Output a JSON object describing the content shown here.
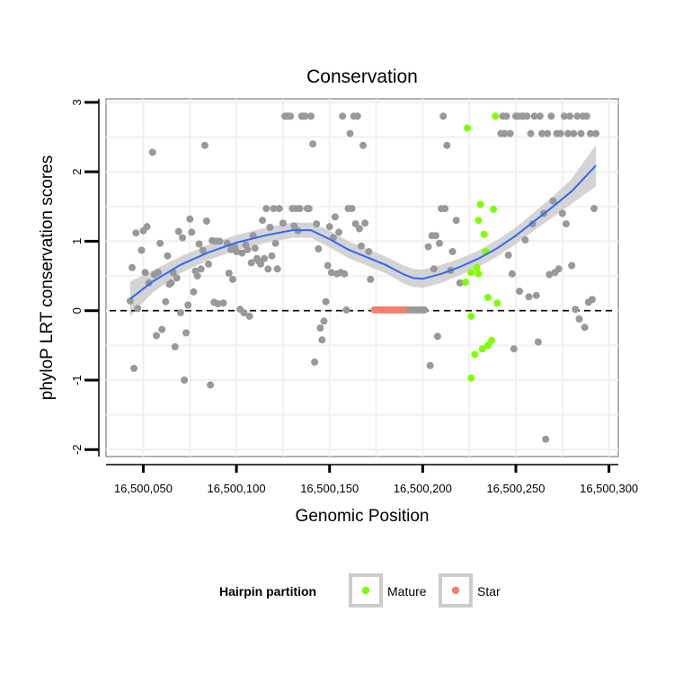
{
  "chart_data": {
    "type": "scatter",
    "title": "Conservation",
    "xlabel": "Genomic Position",
    "ylabel": "phyloP LRT conservation scores",
    "xlim": [
      16500030,
      16500305
    ],
    "ylim": [
      -2.1,
      3.05
    ],
    "x_ticks": [
      16500050,
      16500100,
      16500150,
      16500200,
      16500250,
      16500300
    ],
    "x_tick_labels": [
      "16,500,050",
      "16,500,100",
      "16,500,150",
      "16,500,200",
      "16,500,250",
      "16,500,300"
    ],
    "y_ticks": [
      -2,
      -1,
      0,
      1,
      2,
      3
    ],
    "y_tick_labels": [
      "-2",
      "-1",
      "0",
      "1",
      "2",
      "3"
    ],
    "grid": true,
    "reference_line": {
      "y": 0,
      "style": "dashed",
      "color": "#000000"
    },
    "legend": {
      "title": "Hairpin partition",
      "position": "bottom",
      "entries": [
        {
          "label": "Mature",
          "color": "#7fff00"
        },
        {
          "label": "Star",
          "color": "#f08070"
        }
      ]
    },
    "series": [
      {
        "name": "Mature",
        "color": "#7fff00",
        "points": [
          [
            16500224,
            2.63
          ],
          [
            16500239,
            2.8
          ],
          [
            16500231,
            1.53
          ],
          [
            16500238,
            1.46
          ],
          [
            16500230,
            1.3
          ],
          [
            16500233,
            1.1
          ],
          [
            16500234,
            0.85
          ],
          [
            16500229,
            0.62
          ],
          [
            16500226,
            0.55
          ],
          [
            16500223,
            0.41
          ],
          [
            16500230,
            0.53
          ],
          [
            16500235,
            0.19
          ],
          [
            16500240,
            0.11
          ],
          [
            16500226,
            -0.08
          ],
          [
            16500237,
            -0.43
          ],
          [
            16500235,
            -0.5
          ],
          [
            16500232,
            -0.55
          ],
          [
            16500228,
            -0.63
          ],
          [
            16500226,
            -0.97
          ]
        ]
      },
      {
        "name": "Star",
        "color": "#f08070",
        "points": [
          [
            16500174,
            0.01
          ],
          [
            16500175,
            0.01
          ],
          [
            16500176,
            0.01
          ],
          [
            16500177,
            0.01
          ],
          [
            16500178,
            0.01
          ],
          [
            16500179,
            0.01
          ],
          [
            16500180,
            0.01
          ],
          [
            16500181,
            0.01
          ],
          [
            16500182,
            0.01
          ],
          [
            16500183,
            0.01
          ],
          [
            16500184,
            0.01
          ],
          [
            16500185,
            0.01
          ],
          [
            16500186,
            0.01
          ],
          [
            16500187,
            0.01
          ],
          [
            16500188,
            0.01
          ],
          [
            16500189,
            0.01
          ],
          [
            16500190,
            0.01
          ]
        ]
      },
      {
        "name": "",
        "color": "#999999",
        "points": [
          [
            16500043,
            0.14
          ],
          [
            16500044,
            0.62
          ],
          [
            16500045,
            -0.83
          ],
          [
            16500046,
            1.12
          ],
          [
            16500047,
            0.03
          ],
          [
            16500049,
            0.87
          ],
          [
            16500050,
            1.15
          ],
          [
            16500051,
            0.55
          ],
          [
            16500052,
            1.21
          ],
          [
            16500053,
            0.4
          ],
          [
            16500055,
            2.28
          ],
          [
            16500056,
            0.52
          ],
          [
            16500057,
            -0.36
          ],
          [
            16500058,
            0.55
          ],
          [
            16500059,
            0.97
          ],
          [
            16500060,
            -0.27
          ],
          [
            16500062,
            0.13
          ],
          [
            16500063,
            0.79
          ],
          [
            16500064,
            0.38
          ],
          [
            16500065,
            0.4
          ],
          [
            16500066,
            0.55
          ],
          [
            16500067,
            -0.52
          ],
          [
            16500068,
            0.47
          ],
          [
            16500069,
            1.14
          ],
          [
            16500070,
            -0.03
          ],
          [
            16500071,
            1.05
          ],
          [
            16500072,
            -1.0
          ],
          [
            16500073,
            -0.32
          ],
          [
            16500074,
            0.08
          ],
          [
            16500075,
            1.32
          ],
          [
            16500076,
            1.13
          ],
          [
            16500077,
            0.27
          ],
          [
            16500078,
            0.57
          ],
          [
            16500079,
            0.5
          ],
          [
            16500080,
            0.96
          ],
          [
            16500081,
            0.6
          ],
          [
            16500082,
            0.87
          ],
          [
            16500083,
            2.38
          ],
          [
            16500084,
            1.29
          ],
          [
            16500085,
            0.67
          ],
          [
            16500086,
            -1.07
          ],
          [
            16500087,
            1.01
          ],
          [
            16500088,
            0.12
          ],
          [
            16500089,
            1.0
          ],
          [
            16500090,
            0.1
          ],
          [
            16500091,
            1.0
          ],
          [
            16500093,
            0.11
          ],
          [
            16500095,
            0.97
          ],
          [
            16500096,
            0.54
          ],
          [
            16500097,
            0.88
          ],
          [
            16500098,
            0.45
          ],
          [
            16500099,
            0.92
          ],
          [
            16500100,
            0.85
          ],
          [
            16500102,
            0.02
          ],
          [
            16500103,
            0.83
          ],
          [
            16500104,
            -0.03
          ],
          [
            16500105,
            0.95
          ],
          [
            16500106,
            0.88
          ],
          [
            16500107,
            -0.08
          ],
          [
            16500108,
            0.69
          ],
          [
            16500109,
            1.08
          ],
          [
            16500110,
            0.9
          ],
          [
            16500111,
            0.75
          ],
          [
            16500112,
            0.71
          ],
          [
            16500113,
            0.67
          ],
          [
            16500114,
            1.3
          ],
          [
            16500115,
            0.75
          ],
          [
            16500116,
            1.47
          ],
          [
            16500117,
            0.6
          ],
          [
            16500118,
            1.2
          ],
          [
            16500119,
            0.79
          ],
          [
            16500120,
            1.47
          ],
          [
            16500121,
            0.97
          ],
          [
            16500122,
            0.6
          ],
          [
            16500123,
            1.47
          ],
          [
            16500125,
            1.26
          ],
          [
            16500126,
            2.8
          ],
          [
            16500127,
            2.8
          ],
          [
            16500128,
            2.8
          ],
          [
            16500129,
            2.8
          ],
          [
            16500130,
            1.47
          ],
          [
            16500131,
            1.22
          ],
          [
            16500132,
            1.47
          ],
          [
            16500133,
            1.15
          ],
          [
            16500134,
            1.47
          ],
          [
            16500135,
            2.8
          ],
          [
            16500136,
            2.8
          ],
          [
            16500137,
            2.8
          ],
          [
            16500138,
            1.47
          ],
          [
            16500139,
            1.47
          ],
          [
            16500140,
            2.8
          ],
          [
            16500141,
            2.4
          ],
          [
            16500142,
            -0.74
          ],
          [
            16500143,
            1.25
          ],
          [
            16500144,
            0.89
          ],
          [
            16500145,
            -0.25
          ],
          [
            16500146,
            -0.42
          ],
          [
            16500147,
            -0.15
          ],
          [
            16500148,
            0.13
          ],
          [
            16500149,
            0.65
          ],
          [
            16500150,
            1.21
          ],
          [
            16500151,
            0.55
          ],
          [
            16500152,
            1.05
          ],
          [
            16500153,
            1.35
          ],
          [
            16500154,
            0.53
          ],
          [
            16500155,
            1.13
          ],
          [
            16500156,
            0.55
          ],
          [
            16500157,
            2.8
          ],
          [
            16500158,
            0.53
          ],
          [
            16500159,
            0.01
          ],
          [
            16500160,
            1.47
          ],
          [
            16500161,
            2.55
          ],
          [
            16500162,
            1.47
          ],
          [
            16500163,
            2.8
          ],
          [
            16500164,
            1.25
          ],
          [
            16500165,
            2.8
          ],
          [
            16500166,
            1.18
          ],
          [
            16500167,
            0.93
          ],
          [
            16500168,
            2.38
          ],
          [
            16500169,
            1.26
          ],
          [
            16500171,
            0.85
          ],
          [
            16500172,
            0.45
          ],
          [
            16500191,
            0.01
          ],
          [
            16500192,
            0.01
          ],
          [
            16500193,
            0.01
          ],
          [
            16500194,
            0.01
          ],
          [
            16500195,
            0.01
          ],
          [
            16500196,
            0.01
          ],
          [
            16500197,
            0.01
          ],
          [
            16500198,
            0.01
          ],
          [
            16500199,
            0.01
          ],
          [
            16500200,
            0.01
          ],
          [
            16500201,
            0.01
          ],
          [
            16500203,
            0.92
          ],
          [
            16500204,
            -0.79
          ],
          [
            16500205,
            1.08
          ],
          [
            16500206,
            0.6
          ],
          [
            16500207,
            1.08
          ],
          [
            16500208,
            -0.37
          ],
          [
            16500209,
            0.97
          ],
          [
            16500210,
            1.47
          ],
          [
            16500211,
            2.8
          ],
          [
            16500212,
            1.47
          ],
          [
            16500213,
            2.38
          ],
          [
            16500215,
            0.58
          ],
          [
            16500216,
            0.85
          ],
          [
            16500218,
            1.3
          ],
          [
            16500220,
            0.4
          ],
          [
            16500242,
            2.55
          ],
          [
            16500243,
            2.8
          ],
          [
            16500244,
            2.55
          ],
          [
            16500245,
            2.8
          ],
          [
            16500246,
            0.8
          ],
          [
            16500247,
            2.55
          ],
          [
            16500248,
            0.53
          ],
          [
            16500249,
            -0.55
          ],
          [
            16500250,
            2.8
          ],
          [
            16500251,
            2.8
          ],
          [
            16500252,
            0.28
          ],
          [
            16500253,
            2.8
          ],
          [
            16500254,
            2.8
          ],
          [
            16500255,
            1.02
          ],
          [
            16500256,
            2.8
          ],
          [
            16500257,
            0.2
          ],
          [
            16500258,
            2.55
          ],
          [
            16500259,
            1.25
          ],
          [
            16500260,
            2.8
          ],
          [
            16500261,
            0.22
          ],
          [
            16500262,
            -0.45
          ],
          [
            16500263,
            2.8
          ],
          [
            16500264,
            2.55
          ],
          [
            16500265,
            1.4
          ],
          [
            16500266,
            -1.85
          ],
          [
            16500267,
            2.55
          ],
          [
            16500268,
            0.52
          ],
          [
            16500269,
            2.8
          ],
          [
            16500270,
            1.58
          ],
          [
            16500271,
            0.55
          ],
          [
            16500272,
            2.55
          ],
          [
            16500273,
            0.6
          ],
          [
            16500274,
            2.55
          ],
          [
            16500275,
            1.4
          ],
          [
            16500276,
            2.8
          ],
          [
            16500277,
            1.25
          ],
          [
            16500278,
            2.55
          ],
          [
            16500279,
            2.8
          ],
          [
            16500280,
            0.65
          ],
          [
            16500281,
            2.55
          ],
          [
            16500282,
            0.02
          ],
          [
            16500283,
            2.8
          ],
          [
            16500284,
            -0.12
          ],
          [
            16500285,
            2.55
          ],
          [
            16500286,
            2.8
          ],
          [
            16500287,
            -0.24
          ],
          [
            16500288,
            2.8
          ],
          [
            16500289,
            0.12
          ],
          [
            16500290,
            2.55
          ],
          [
            16500291,
            0.16
          ],
          [
            16500292,
            1.47
          ],
          [
            16500293,
            2.55
          ]
        ]
      }
    ],
    "smooth": {
      "method": "loess",
      "color": "#3366ff",
      "band_color": "#cccccc",
      "points": [
        [
          16500043,
          0.17
        ],
        [
          16500055,
          0.42
        ],
        [
          16500070,
          0.66
        ],
        [
          16500085,
          0.84
        ],
        [
          16500100,
          0.98
        ],
        [
          16500115,
          1.08
        ],
        [
          16500130,
          1.16
        ],
        [
          16500140,
          1.16
        ],
        [
          16500150,
          1.03
        ],
        [
          16500160,
          0.88
        ],
        [
          16500170,
          0.77
        ],
        [
          16500180,
          0.66
        ],
        [
          16500190,
          0.52
        ],
        [
          16500195,
          0.47
        ],
        [
          16500200,
          0.46
        ],
        [
          16500210,
          0.53
        ],
        [
          16500220,
          0.63
        ],
        [
          16500230,
          0.75
        ],
        [
          16500240,
          0.9
        ],
        [
          16500250,
          1.08
        ],
        [
          16500260,
          1.29
        ],
        [
          16500270,
          1.5
        ],
        [
          16500280,
          1.72
        ],
        [
          16500293,
          2.09
        ]
      ],
      "band_halfwidth": [
        0.25,
        0.16,
        0.12,
        0.11,
        0.11,
        0.11,
        0.11,
        0.11,
        0.12,
        0.12,
        0.12,
        0.12,
        0.13,
        0.13,
        0.13,
        0.13,
        0.12,
        0.12,
        0.12,
        0.12,
        0.13,
        0.15,
        0.18,
        0.3
      ]
    }
  }
}
